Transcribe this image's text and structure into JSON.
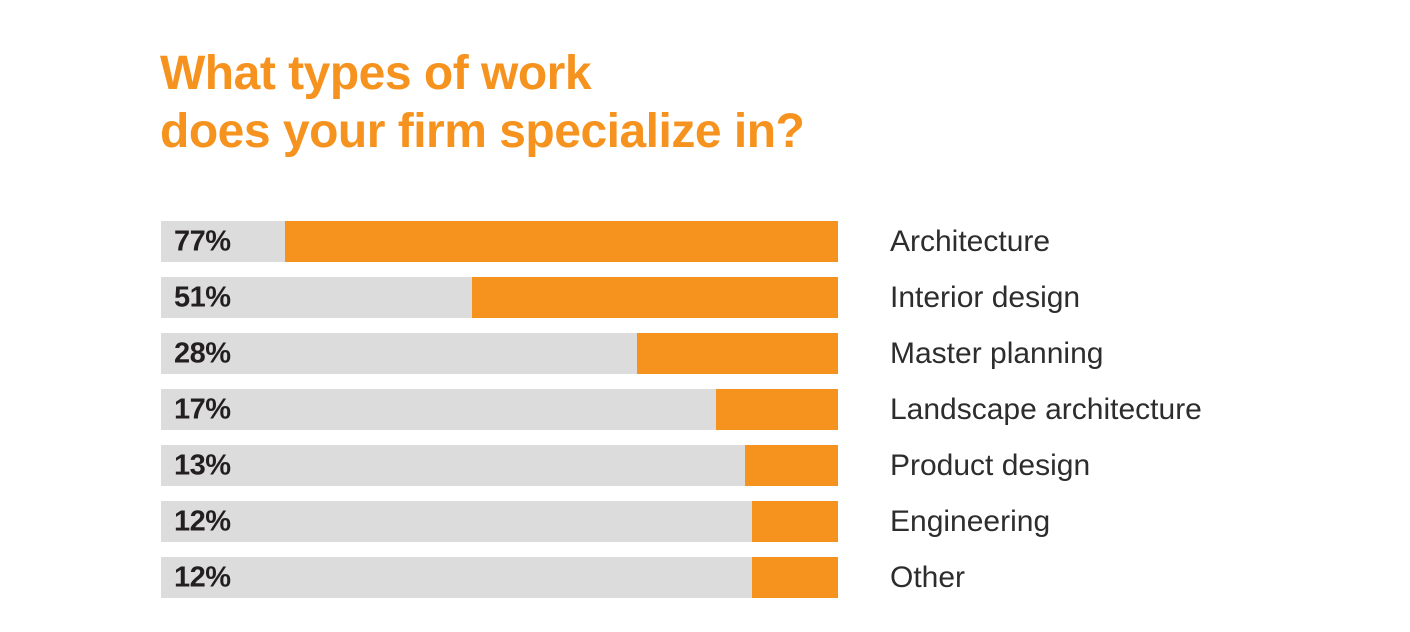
{
  "title": {
    "line1": "What types of work",
    "line2": "does your firm specialize in?"
  },
  "colors": {
    "accent_orange": "#F6921E",
    "track_gray": "#DCDCDC",
    "value_text": "#231F20",
    "category_text": "#2D2D2D",
    "background": "#FFFFFF"
  },
  "chart_data": {
    "type": "bar",
    "orientation": "horizontal",
    "title": "What types of work does your firm specialize in?",
    "categories": [
      "Architecture",
      "Interior design",
      "Master planning",
      "Landscape architecture",
      "Product design",
      "Engineering",
      "Other"
    ],
    "values": [
      77,
      51,
      28,
      17,
      13,
      12,
      12
    ],
    "value_labels": [
      "77%",
      "51%",
      "28%",
      "17%",
      "13%",
      "12%",
      "12%"
    ],
    "unit": "%",
    "xlim": [
      0,
      100
    ],
    "grid": false,
    "legend": false,
    "bar_style": "orange fill anchored to right end of gray track; percentage label inside track at left; category label to right of track"
  }
}
